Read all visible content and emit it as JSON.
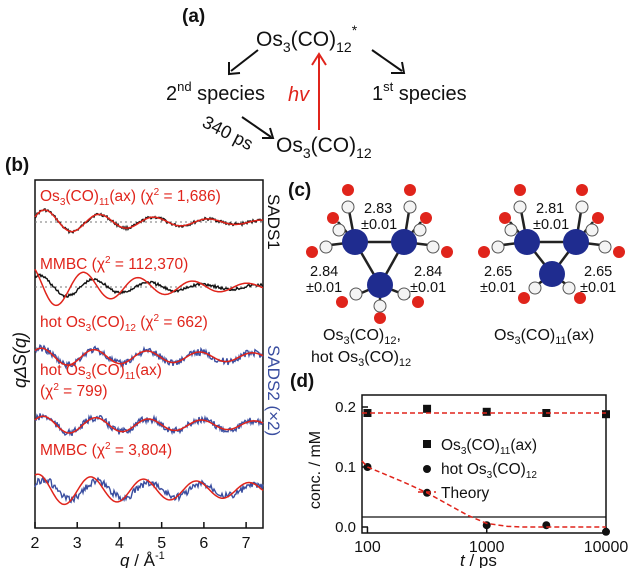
{
  "panels": {
    "a": {
      "label": "(a)",
      "top": {
        "main": "Os",
        "sub1": "3",
        "mid": "(CO)",
        "sub2": "12",
        "star": "*"
      },
      "left": {
        "main": "2",
        "sup": "nd",
        "rest": " species"
      },
      "right": {
        "main": "1",
        "sup": "st",
        "rest": " species"
      },
      "hv": "hv",
      "bottom": {
        "main": "Os",
        "sub1": "3",
        "mid": "(CO)",
        "sub2": "12"
      },
      "time": "340 ps"
    },
    "b": {
      "label": "(b)",
      "ylabel": "qΔS(q)",
      "xlabel_main": "q",
      "xlabel_unit": " / Å",
      "xlabel_exp": "-1",
      "xticks": [
        "2",
        "3",
        "4",
        "5",
        "6",
        "7"
      ],
      "sads1": "SADS1",
      "sads2": "SADS2 (×2)",
      "fits": [
        {
          "pre": "Os",
          "s1": "3",
          "mid": "(CO)",
          "s2": "11",
          "post": "(ax)  (χ",
          "sup": "2",
          "end": " = 1,686)"
        },
        {
          "pre": "MMBC  (χ",
          "sup": "2",
          "end": " = 112,370)"
        },
        {
          "pre": "hot Os",
          "s1": "3",
          "mid": "(CO)",
          "s2": "12",
          "post": "  (χ",
          "sup": "2",
          "end": " = 662)"
        },
        {
          "pre": "hot Os",
          "s1": "3",
          "mid": "(CO)",
          "s2": "11",
          "post": "(ax)"
        },
        {
          "pre": "(χ",
          "sup": "2",
          "end": " = 799)"
        },
        {
          "pre": "MMBC  (χ",
          "sup": "2",
          "end": " = 3,804)"
        }
      ]
    },
    "c": {
      "label": "(c)",
      "left_distances": [
        "2.83",
        "±0.01",
        "2.84",
        "±0.01",
        "2.84",
        "±0.01"
      ],
      "right_distances": [
        "2.81",
        "±0.01",
        "2.65",
        "±0.01",
        "2.65",
        "±0.01"
      ],
      "left_caption_1": {
        "pre": "Os",
        "s1": "3",
        "mid": "(CO)",
        "s2": "12",
        "post": ","
      },
      "left_caption_2": {
        "pre": "hot Os",
        "s1": "3",
        "mid": "(CO)",
        "s2": "12"
      },
      "right_caption": {
        "pre": "Os",
        "s1": "3",
        "mid": "(CO)",
        "s2": "11",
        "post": "(ax)"
      }
    },
    "d": {
      "label": "(d)",
      "ylabel": "conc. / mM",
      "xlabel_main": "t",
      "xlabel_unit": " / ps",
      "yticks": [
        "0.0",
        "0.1",
        "0.2"
      ],
      "xticks": [
        "100",
        "1000",
        "10000"
      ],
      "legend": {
        "s1": {
          "pre": "Os",
          "s1": "3",
          "mid": "(CO)",
          "s2": "11",
          "post": "(ax)"
        },
        "s2": {
          "pre": "hot Os",
          "s1": "3",
          "mid": "(CO)",
          "s2": "12"
        },
        "theory": "Theory"
      }
    }
  },
  "colors": {
    "red": "#e0241b",
    "blue": "#3a4ea0",
    "black": "#111111",
    "os": "#1f2c8f",
    "oxygen": "#e0241b"
  },
  "chart_data": [
    {
      "type": "line",
      "panel": "b",
      "xlabel": "q / Å-1",
      "ylabel": "qΔS(q)",
      "xlim": [
        2,
        7.4
      ],
      "series": [
        {
          "name": "SADS1",
          "count": 2
        },
        {
          "name": "SADS2 (×2)",
          "count": 4
        }
      ]
    },
    {
      "type": "scatter",
      "panel": "d",
      "xlabel": "t / ps",
      "ylabel": "conc. / mM",
      "xscale": "log",
      "xlim": [
        90,
        10000
      ],
      "ylim": [
        -0.01,
        0.22
      ],
      "series": [
        {
          "name": "Os3(CO)11(ax)",
          "marker": "square",
          "x": [
            100,
            316,
            1000,
            3160,
            10000
          ],
          "y": [
            0.19,
            0.197,
            0.192,
            0.19,
            0.188
          ]
        },
        {
          "name": "hot Os3(CO)12",
          "marker": "circle",
          "x": [
            100,
            316,
            1000,
            3160,
            10000
          ],
          "y": [
            0.1,
            0.057,
            0.003,
            0.003,
            -0.008
          ]
        },
        {
          "name": "Theory",
          "style": "dashed",
          "x": [
            90,
            100,
            200,
            316,
            500,
            700,
            1000,
            1500,
            2000,
            10000
          ],
          "y": [
            0.11,
            0.1,
            0.075,
            0.057,
            0.035,
            0.019,
            0.006,
            0.001,
            0.0,
            0.0
          ]
        },
        {
          "name": "Theory",
          "style": "dashed",
          "x": [
            90,
            10000
          ],
          "y": [
            0.19,
            0.19
          ]
        }
      ]
    }
  ]
}
